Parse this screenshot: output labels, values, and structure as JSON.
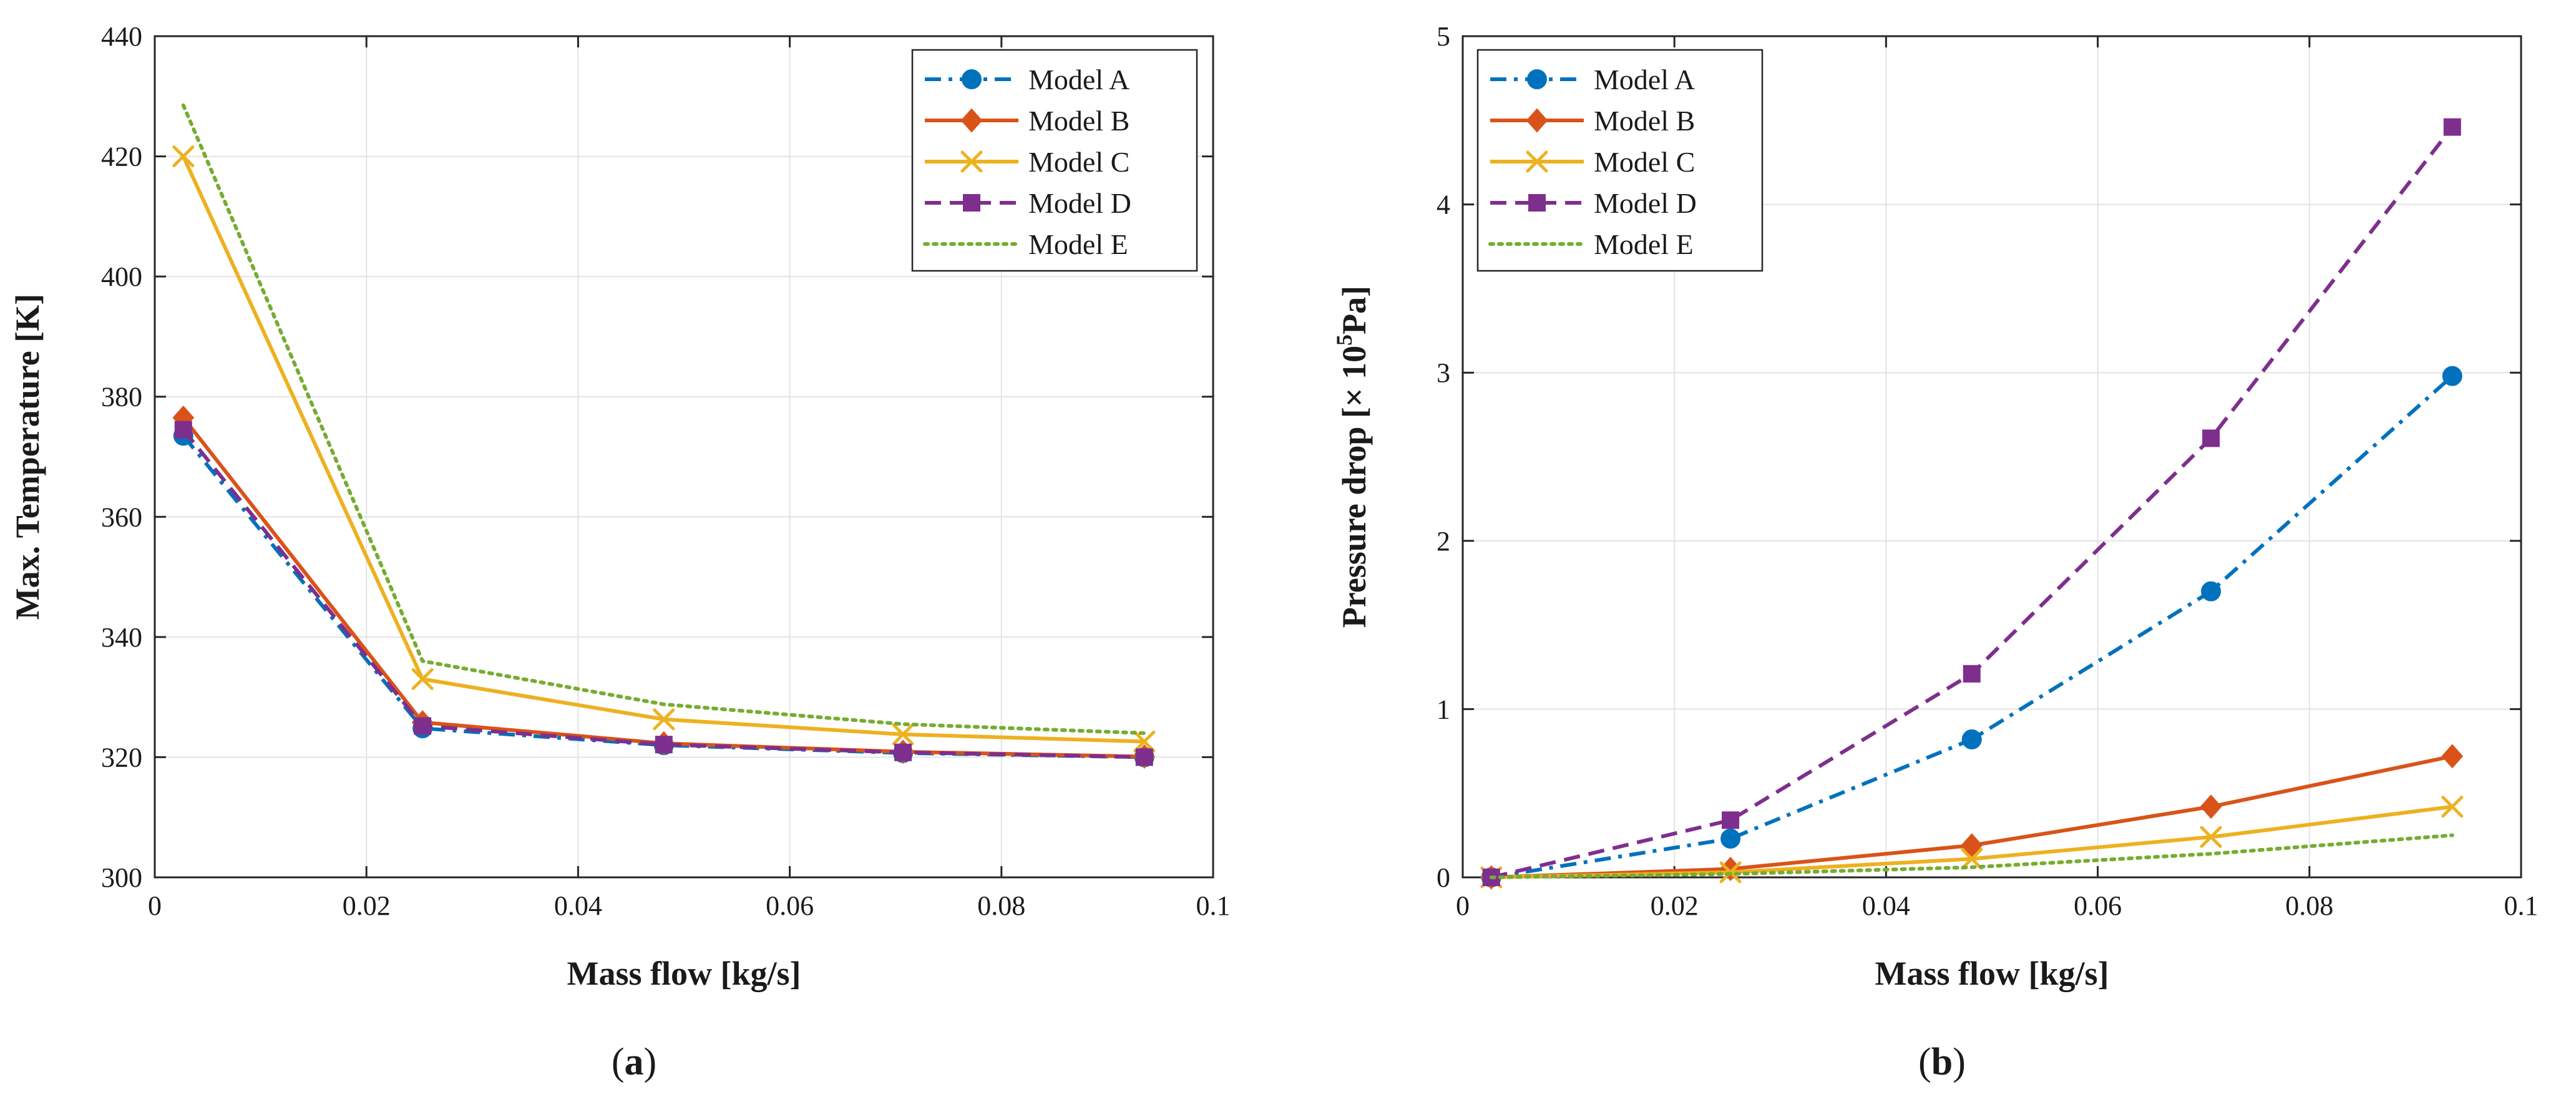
{
  "figure_labels": {
    "a": {
      "open": "(",
      "letter": "a",
      "close": ")"
    },
    "b": {
      "open": "(",
      "letter": "b",
      "close": ")"
    }
  },
  "chart_data": [
    {
      "type": "line",
      "id": "a",
      "title": "",
      "xlabel": "Mass flow [kg/s]",
      "ylabel": "Max. Temperature [K]",
      "xlim": [
        0,
        0.1
      ],
      "ylim": [
        300,
        440
      ],
      "xticks": [
        0,
        0.02,
        0.04,
        0.06,
        0.08,
        0.1
      ],
      "xtick_labels": [
        "0",
        "0.02",
        "0.04",
        "0.06",
        "0.08",
        "0.1"
      ],
      "yticks": [
        300,
        320,
        340,
        360,
        380,
        400,
        420,
        440
      ],
      "ytick_labels": [
        "300",
        "320",
        "340",
        "360",
        "380",
        "400",
        "420",
        "440"
      ],
      "grid": true,
      "legend": "top-right",
      "x": [
        0.0027,
        0.0253,
        0.0481,
        0.0707,
        0.0935
      ],
      "series": [
        {
          "name": "Model A",
          "values": [
            373.5,
            324.8,
            322.0,
            320.7,
            320.0
          ],
          "color": "#0072BD",
          "dash": "dashdot",
          "marker": "circle"
        },
        {
          "name": "Model B",
          "values": [
            376.5,
            325.8,
            322.3,
            320.9,
            320.1
          ],
          "color": "#D95319",
          "dash": "solid",
          "marker": "diamond"
        },
        {
          "name": "Model C",
          "values": [
            420.0,
            333.0,
            326.3,
            323.8,
            322.6
          ],
          "color": "#EDB120",
          "dash": "solid",
          "marker": "x"
        },
        {
          "name": "Model D",
          "values": [
            374.5,
            325.2,
            322.1,
            320.8,
            320.0
          ],
          "color": "#7E2F8E",
          "dash": "dashed",
          "marker": "square"
        },
        {
          "name": "Model E",
          "values": [
            428.5,
            336.0,
            328.8,
            325.5,
            324.0
          ],
          "color": "#77AC30",
          "dash": "dotted",
          "marker": "none"
        }
      ]
    },
    {
      "type": "line",
      "id": "b",
      "title": "",
      "xlabel": "Mass flow [kg/s]",
      "ylabel_main": "Pressure drop [× 10",
      "ylabel_sup": "5",
      "ylabel_tail": "Pa]",
      "xlim": [
        0,
        0.1
      ],
      "ylim": [
        0,
        5
      ],
      "xticks": [
        0,
        0.02,
        0.04,
        0.06,
        0.08,
        0.1
      ],
      "xtick_labels": [
        "0",
        "0.02",
        "0.04",
        "0.06",
        "0.08",
        "0.1"
      ],
      "yticks": [
        0,
        1,
        2,
        3,
        4,
        5
      ],
      "ytick_labels": [
        "0",
        "1",
        "2",
        "3",
        "4",
        "5"
      ],
      "grid": true,
      "legend": "top-left",
      "x": [
        0.0027,
        0.0253,
        0.0481,
        0.0707,
        0.0935
      ],
      "series": [
        {
          "name": "Model A",
          "values": [
            0.0,
            0.23,
            0.82,
            1.7,
            2.98
          ],
          "color": "#0072BD",
          "dash": "dashdot",
          "marker": "circle"
        },
        {
          "name": "Model B",
          "values": [
            0.0,
            0.05,
            0.19,
            0.42,
            0.72
          ],
          "color": "#D95319",
          "dash": "solid",
          "marker": "diamond"
        },
        {
          "name": "Model C",
          "values": [
            0.0,
            0.03,
            0.11,
            0.24,
            0.42
          ],
          "color": "#EDB120",
          "dash": "solid",
          "marker": "x"
        },
        {
          "name": "Model D",
          "values": [
            0.0,
            0.34,
            1.21,
            2.61,
            4.46
          ],
          "color": "#7E2F8E",
          "dash": "dashed",
          "marker": "square"
        },
        {
          "name": "Model E",
          "values": [
            0.0,
            0.02,
            0.06,
            0.14,
            0.25
          ],
          "color": "#77AC30",
          "dash": "dotted",
          "marker": "none"
        }
      ]
    }
  ]
}
